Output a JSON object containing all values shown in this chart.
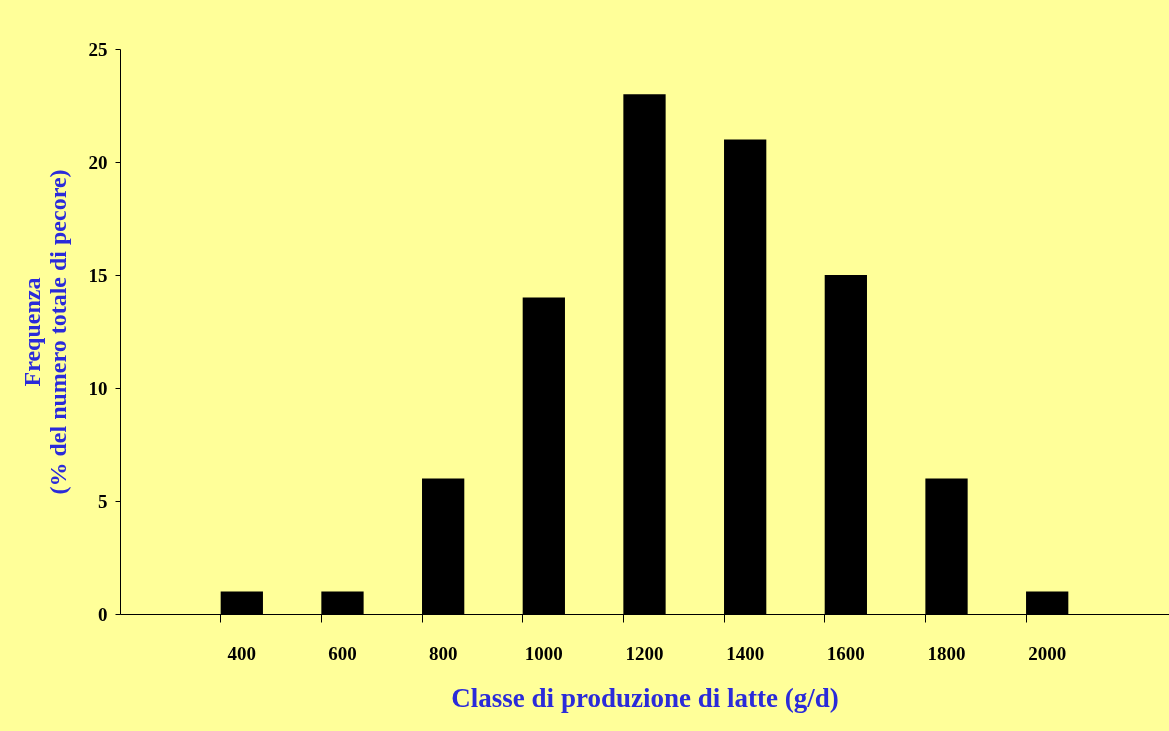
{
  "chart_data": {
    "type": "bar",
    "categories": [
      "400",
      "600",
      "800",
      "1000",
      "1200",
      "1400",
      "1600",
      "1800",
      "2000"
    ],
    "values": [
      1,
      1,
      6,
      14,
      23,
      21,
      15,
      6,
      1
    ],
    "color": "#000000",
    "xlabel": "Classe di produzione di latte (g/d)",
    "ylabel": [
      "Frequenza",
      "(% del numero totale di pecore)"
    ],
    "ylim": [
      0,
      25
    ],
    "yticks": [
      0,
      5,
      10,
      15,
      20,
      25
    ],
    "grid": false
  }
}
